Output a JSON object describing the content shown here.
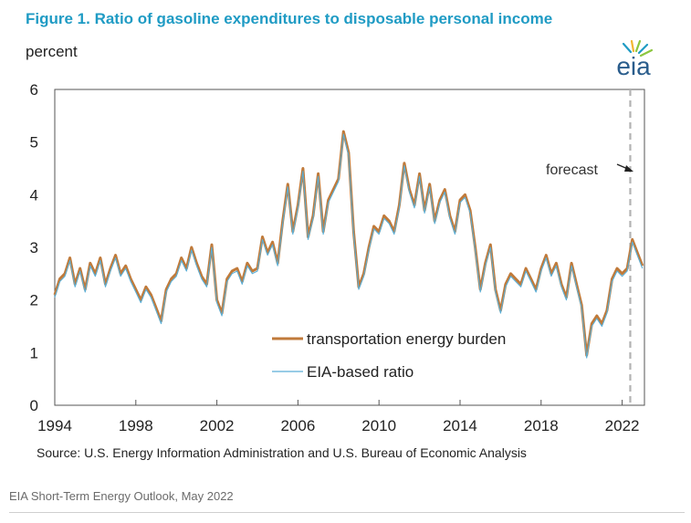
{
  "figure": {
    "title": "Figure 1. Ratio of gasoline expenditures to disposable personal income",
    "logo_text": "eia"
  },
  "caption": "EIA Short-Term Energy Outlook, May 2022",
  "colors": {
    "title": "#1f9bc4",
    "burden": "#c07a3a",
    "eia": "#5aaed6",
    "forecast_line": "#b3b3b3"
  },
  "chart_data": {
    "type": "line",
    "ylabel": "percent",
    "source": "Source: U.S. Energy Information Administration and U.S. Bureau of Economic Analysis",
    "xlim": [
      1994,
      2023.1
    ],
    "ylim": [
      0,
      6
    ],
    "xticks": [
      1994,
      1998,
      2002,
      2006,
      2010,
      2014,
      2018,
      2022
    ],
    "xtick_labels": [
      "1994",
      "1998",
      "2002",
      "2006",
      "2010",
      "2014",
      "2018",
      "2022"
    ],
    "yticks": [
      0,
      1,
      2,
      3,
      4,
      5,
      6
    ],
    "ytick_labels": [
      "0",
      "1",
      "2",
      "3",
      "4",
      "5",
      "6"
    ],
    "forecast_start": 2022.4,
    "annotation": "forecast",
    "legend": [
      "transportation energy burden",
      "EIA-based ratio"
    ],
    "series": [
      {
        "name": "transportation energy burden",
        "x": [
          1994.0,
          1994.25,
          1994.5,
          1994.75,
          1995.0,
          1995.25,
          1995.5,
          1995.75,
          1996.0,
          1996.25,
          1996.5,
          1996.75,
          1997.0,
          1997.25,
          1997.5,
          1997.75,
          1998.0,
          1998.25,
          1998.5,
          1998.75,
          1999.0,
          1999.25,
          1999.5,
          1999.75,
          2000.0,
          2000.25,
          2000.5,
          2000.75,
          2001.0,
          2001.25,
          2001.5,
          2001.75,
          2002.0,
          2002.25,
          2002.5,
          2002.75,
          2003.0,
          2003.25,
          2003.5,
          2003.75,
          2004.0,
          2004.25,
          2004.5,
          2004.75,
          2005.0,
          2005.25,
          2005.5,
          2005.75,
          2006.0,
          2006.25,
          2006.5,
          2006.75,
          2007.0,
          2007.25,
          2007.5,
          2007.75,
          2008.0,
          2008.25,
          2008.5,
          2008.75,
          2009.0,
          2009.25,
          2009.5,
          2009.75,
          2010.0,
          2010.25,
          2010.5,
          2010.75,
          2011.0,
          2011.25,
          2011.5,
          2011.75,
          2012.0,
          2012.25,
          2012.5,
          2012.75,
          2013.0,
          2013.25,
          2013.5,
          2013.75,
          2014.0,
          2014.25,
          2014.5,
          2014.75,
          2015.0,
          2015.25,
          2015.5,
          2015.75,
          2016.0,
          2016.25,
          2016.5,
          2016.75,
          2017.0,
          2017.25,
          2017.5,
          2017.75,
          2018.0,
          2018.25,
          2018.5,
          2018.75,
          2019.0,
          2019.25,
          2019.5,
          2019.75,
          2020.0,
          2020.25,
          2020.5,
          2020.75,
          2021.0,
          2021.25,
          2021.5,
          2021.75,
          2022.0,
          2022.25,
          2022.5,
          2022.75,
          2023.0
        ],
        "values": [
          2.1,
          2.4,
          2.5,
          2.8,
          2.3,
          2.6,
          2.2,
          2.7,
          2.5,
          2.8,
          2.3,
          2.6,
          2.85,
          2.5,
          2.65,
          2.4,
          2.2,
          2.0,
          2.25,
          2.1,
          1.85,
          1.6,
          2.2,
          2.4,
          2.5,
          2.8,
          2.6,
          3.0,
          2.7,
          2.45,
          2.3,
          3.05,
          2.0,
          1.75,
          2.4,
          2.55,
          2.6,
          2.35,
          2.7,
          2.55,
          2.6,
          3.2,
          2.9,
          3.1,
          2.7,
          3.5,
          4.2,
          3.3,
          3.8,
          4.5,
          3.2,
          3.6,
          4.4,
          3.3,
          3.9,
          4.1,
          4.3,
          5.2,
          4.8,
          3.3,
          2.25,
          2.5,
          3.0,
          3.4,
          3.3,
          3.6,
          3.5,
          3.3,
          3.8,
          4.6,
          4.1,
          3.8,
          4.4,
          3.7,
          4.2,
          3.5,
          3.9,
          4.1,
          3.6,
          3.3,
          3.9,
          4.0,
          3.7,
          3.0,
          2.2,
          2.7,
          3.05,
          2.2,
          1.8,
          2.3,
          2.5,
          2.4,
          2.3,
          2.6,
          2.4,
          2.2,
          2.6,
          2.85,
          2.5,
          2.7,
          2.3,
          2.05,
          2.7,
          2.3,
          1.9,
          0.95,
          1.55,
          1.7,
          1.55,
          1.8,
          2.4,
          2.6,
          2.5,
          2.6,
          3.15,
          2.9,
          2.65
        ]
      },
      {
        "name": "EIA-based ratio",
        "x": [
          1994.0,
          1994.25,
          1994.5,
          1994.75,
          1995.0,
          1995.25,
          1995.5,
          1995.75,
          1996.0,
          1996.25,
          1996.5,
          1996.75,
          1997.0,
          1997.25,
          1997.5,
          1997.75,
          1998.0,
          1998.25,
          1998.5,
          1998.75,
          1999.0,
          1999.25,
          1999.5,
          1999.75,
          2000.0,
          2000.25,
          2000.5,
          2000.75,
          2001.0,
          2001.25,
          2001.5,
          2001.75,
          2002.0,
          2002.25,
          2002.5,
          2002.75,
          2003.0,
          2003.25,
          2003.5,
          2003.75,
          2004.0,
          2004.25,
          2004.5,
          2004.75,
          2005.0,
          2005.25,
          2005.5,
          2005.75,
          2006.0,
          2006.25,
          2006.5,
          2006.75,
          2007.0,
          2007.25,
          2007.5,
          2007.75,
          2008.0,
          2008.25,
          2008.5,
          2008.75,
          2009.0,
          2009.25,
          2009.5,
          2009.75,
          2010.0,
          2010.25,
          2010.5,
          2010.75,
          2011.0,
          2011.25,
          2011.5,
          2011.75,
          2012.0,
          2012.25,
          2012.5,
          2012.75,
          2013.0,
          2013.25,
          2013.5,
          2013.75,
          2014.0,
          2014.25,
          2014.5,
          2014.75,
          2015.0,
          2015.25,
          2015.5,
          2015.75,
          2016.0,
          2016.25,
          2016.5,
          2016.75,
          2017.0,
          2017.25,
          2017.5,
          2017.75,
          2018.0,
          2018.25,
          2018.5,
          2018.75,
          2019.0,
          2019.25,
          2019.5,
          2019.75,
          2020.0,
          2020.25,
          2020.5,
          2020.75,
          2021.0,
          2021.25,
          2021.5,
          2021.75,
          2022.0,
          2022.25,
          2022.5,
          2022.75,
          2023.0
        ],
        "values": [
          2.05,
          2.35,
          2.45,
          2.75,
          2.25,
          2.55,
          2.15,
          2.65,
          2.45,
          2.75,
          2.25,
          2.55,
          2.8,
          2.45,
          2.6,
          2.35,
          2.15,
          1.95,
          2.2,
          2.05,
          1.8,
          1.55,
          2.15,
          2.35,
          2.45,
          2.75,
          2.55,
          2.95,
          2.65,
          2.4,
          2.25,
          3.0,
          1.95,
          1.7,
          2.35,
          2.5,
          2.55,
          2.3,
          2.65,
          2.5,
          2.55,
          3.15,
          2.85,
          3.05,
          2.65,
          3.45,
          4.15,
          3.25,
          3.75,
          4.45,
          3.15,
          3.55,
          4.35,
          3.25,
          3.85,
          4.05,
          4.25,
          5.15,
          4.75,
          3.25,
          2.2,
          2.45,
          2.95,
          3.35,
          3.25,
          3.55,
          3.45,
          3.25,
          3.75,
          4.55,
          4.05,
          3.75,
          4.35,
          3.65,
          4.15,
          3.45,
          3.85,
          4.05,
          3.55,
          3.25,
          3.85,
          3.95,
          3.65,
          2.95,
          2.15,
          2.65,
          3.0,
          2.15,
          1.75,
          2.25,
          2.45,
          2.35,
          2.25,
          2.55,
          2.35,
          2.15,
          2.55,
          2.8,
          2.45,
          2.65,
          2.25,
          2.0,
          2.65,
          2.25,
          1.85,
          0.9,
          1.5,
          1.65,
          1.5,
          1.75,
          2.35,
          2.55,
          2.45,
          2.55,
          3.1,
          2.85,
          2.6
        ]
      }
    ]
  }
}
